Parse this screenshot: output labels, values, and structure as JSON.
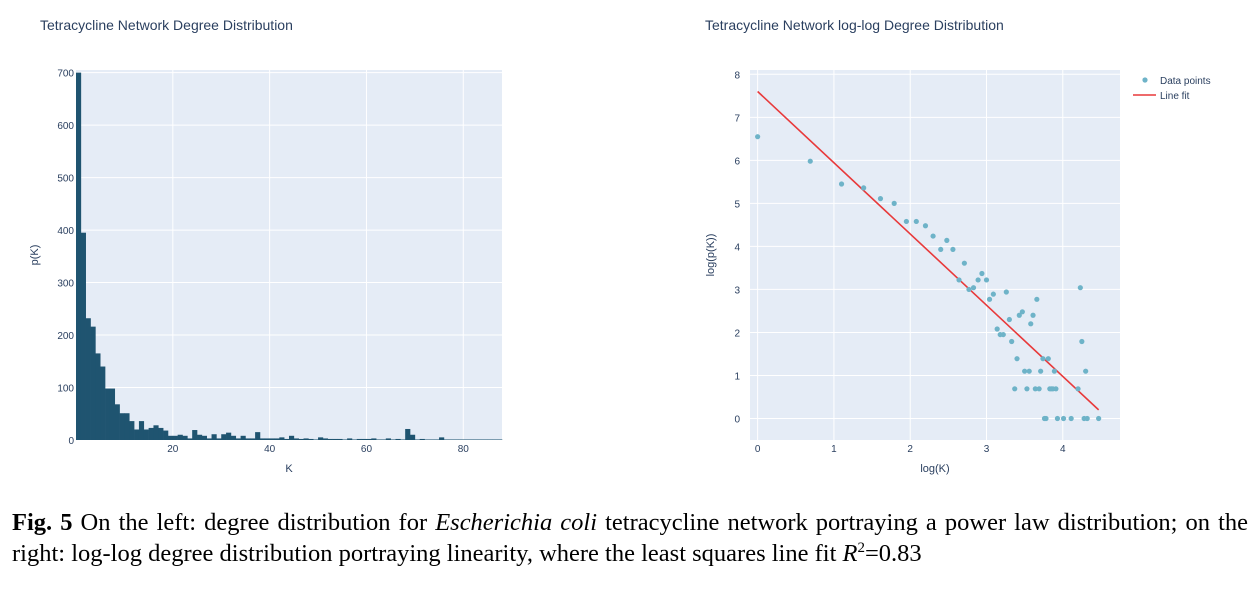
{
  "colors": {
    "bar": "#1f5470",
    "plot_bg": "#e5ecf6",
    "grid": "#ffffff",
    "point": "#6eb3c8",
    "fit_line": "#e8393a",
    "axis_text": "#2a3f5f"
  },
  "chart_data": [
    {
      "type": "bar",
      "title": "Tetracycline Network Degree Distribution",
      "xlabel": "K",
      "ylabel": "p(K)",
      "xlim": [
        0,
        88
      ],
      "ylim": [
        0,
        705
      ],
      "xticks": [
        20,
        40,
        60,
        80
      ],
      "yticks": [
        0,
        100,
        200,
        300,
        400,
        500,
        600,
        700
      ],
      "x": [
        1,
        2,
        3,
        4,
        5,
        6,
        7,
        8,
        9,
        10,
        11,
        12,
        13,
        14,
        15,
        16,
        17,
        18,
        19,
        20,
        21,
        22,
        23,
        24,
        25,
        26,
        27,
        28,
        29,
        30,
        31,
        32,
        33,
        34,
        35,
        36,
        37,
        38,
        39,
        40,
        41,
        42,
        43,
        44,
        45,
        46,
        47,
        48,
        49,
        50,
        51,
        52,
        53,
        54,
        55,
        56,
        57,
        58,
        59,
        60,
        61,
        62,
        63,
        64,
        65,
        66,
        67,
        68,
        69,
        70,
        71,
        72,
        73,
        74,
        75,
        76,
        77,
        78,
        79,
        80,
        81,
        82,
        83,
        84,
        85,
        86,
        87,
        88
      ],
      "values": [
        700,
        395,
        232,
        216,
        165,
        140,
        98,
        98,
        68,
        51,
        51,
        36,
        20,
        36,
        20,
        23,
        28,
        23,
        18,
        8,
        8,
        10,
        8,
        3,
        19,
        10,
        8,
        3,
        11,
        3,
        11,
        14,
        8,
        3,
        8,
        3,
        3,
        15,
        3,
        3,
        3,
        3,
        5,
        2,
        8,
        3,
        2,
        3,
        2,
        1,
        5,
        3,
        2,
        2,
        2,
        1,
        3,
        1,
        2,
        2,
        2,
        3,
        1,
        1,
        3,
        1,
        2,
        1,
        21,
        10,
        1,
        2,
        1,
        1,
        1,
        5,
        1,
        1,
        1,
        1,
        1,
        1,
        1,
        1,
        1,
        1,
        1,
        1
      ]
    },
    {
      "type": "scatter",
      "title": "Tetracycline Network log-log Degree Distribution",
      "xlabel": "log(K)",
      "ylabel": "log(p(K))",
      "xlim": [
        -0.1,
        4.75
      ],
      "ylim": [
        -0.5,
        8.1
      ],
      "xticks": [
        0,
        1,
        2,
        3,
        4
      ],
      "yticks": [
        0,
        1,
        2,
        3,
        4,
        5,
        6,
        7,
        8
      ],
      "legend": {
        "position": "top-right",
        "entries": [
          "Data points",
          "Line fit"
        ]
      },
      "series": [
        {
          "name": "Data points",
          "mode": "markers",
          "x": [
            0,
            0.69,
            1.1,
            1.39,
            1.61,
            1.79,
            1.95,
            2.08,
            2.2,
            2.3,
            2.4,
            2.48,
            2.56,
            2.64,
            2.71,
            2.77,
            2.83,
            2.89,
            2.94,
            3.0,
            3.04,
            3.09,
            3.14,
            3.18,
            3.22,
            3.26,
            3.3,
            3.33,
            3.37,
            3.4,
            3.43,
            3.47,
            3.5,
            3.53,
            3.56,
            3.58,
            3.61,
            3.64,
            3.66,
            3.69,
            3.71,
            3.74,
            3.76,
            3.78,
            3.81,
            3.83,
            3.85,
            3.87,
            3.89,
            3.91,
            3.93,
            4.01,
            4.11,
            4.2,
            4.23,
            4.25,
            4.28,
            4.3,
            4.32,
            4.47
          ],
          "y": [
            6.55,
            5.98,
            5.45,
            5.36,
            5.11,
            5.0,
            4.58,
            4.58,
            4.48,
            4.24,
            3.93,
            4.14,
            3.93,
            3.22,
            3.61,
            3.0,
            3.04,
            3.22,
            3.37,
            3.22,
            2.77,
            2.89,
            2.08,
            1.95,
            1.95,
            2.94,
            2.3,
            1.79,
            0.69,
            1.39,
            2.4,
            2.48,
            1.1,
            0.69,
            1.1,
            2.2,
            2.4,
            0.69,
            2.77,
            0.69,
            1.1,
            1.39,
            0,
            0,
            1.39,
            0.69,
            0.69,
            0.69,
            1.1,
            0.69,
            0,
            0,
            0,
            0.69,
            3.04,
            1.79,
            0,
            1.1,
            0,
            0
          ]
        },
        {
          "name": "Line fit",
          "mode": "lines",
          "x": [
            0,
            4.47
          ],
          "y": [
            7.6,
            0.2
          ]
        }
      ]
    }
  ],
  "caption": {
    "fig_label": "Fig. 5",
    "text_before_italic": " On the left: degree distribution for ",
    "italic_text": "Escherichia coli",
    "text_after_italic": " tetracycline network portraying a power law distribution; on the right: log-log degree distribution portraying linearity, where the least squares line fit ",
    "r_symbol": "R",
    "r_exponent": "2",
    "r_value": "=0.83"
  }
}
